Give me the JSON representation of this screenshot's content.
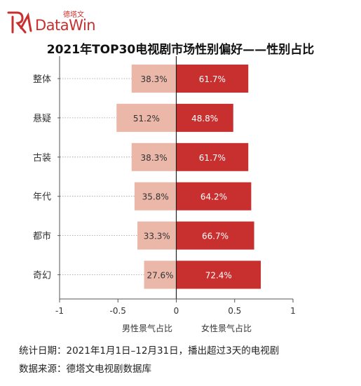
{
  "logo": {
    "cn": "德塔文",
    "en": "DataWin"
  },
  "title": "2021年TOP30电视剧市场性别偏好——性别占比",
  "footer": {
    "date_label": "统计日期：",
    "date_value": "2021年1月1日–12月31日，播出超过3天的电视剧",
    "source_label": "数据来源：",
    "source_value": "德塔文电视剧数据库"
  },
  "colors": {
    "male": "#eab7a9",
    "female": "#c8302f",
    "brand": "#c8302f"
  },
  "chart_data": {
    "type": "bar",
    "orientation": "horizontal-diverging",
    "title": "2021年TOP30电视剧市场性别偏好——性别占比",
    "categories": [
      "整体",
      "悬疑",
      "古装",
      "年代",
      "都市",
      "奇幻"
    ],
    "series": [
      {
        "name": "男性景气占比",
        "values": [
          -0.383,
          -0.512,
          -0.383,
          -0.358,
          -0.333,
          -0.276
        ],
        "labels": [
          "38.3%",
          "51.2%",
          "38.3%",
          "35.8%",
          "33.3%",
          "27.6%"
        ]
      },
      {
        "name": "女性景气占比",
        "values": [
          0.617,
          0.488,
          0.617,
          0.642,
          0.667,
          0.724
        ],
        "labels": [
          "61.7%",
          "48.8%",
          "61.7%",
          "64.2%",
          "66.7%",
          "72.4%"
        ]
      }
    ],
    "xlim": [
      -1,
      1
    ],
    "xticks": [
      "-1",
      "-0.5",
      "0",
      "0.5",
      "1"
    ],
    "xlabel": "",
    "ylabel": "",
    "legend": "bottom"
  }
}
